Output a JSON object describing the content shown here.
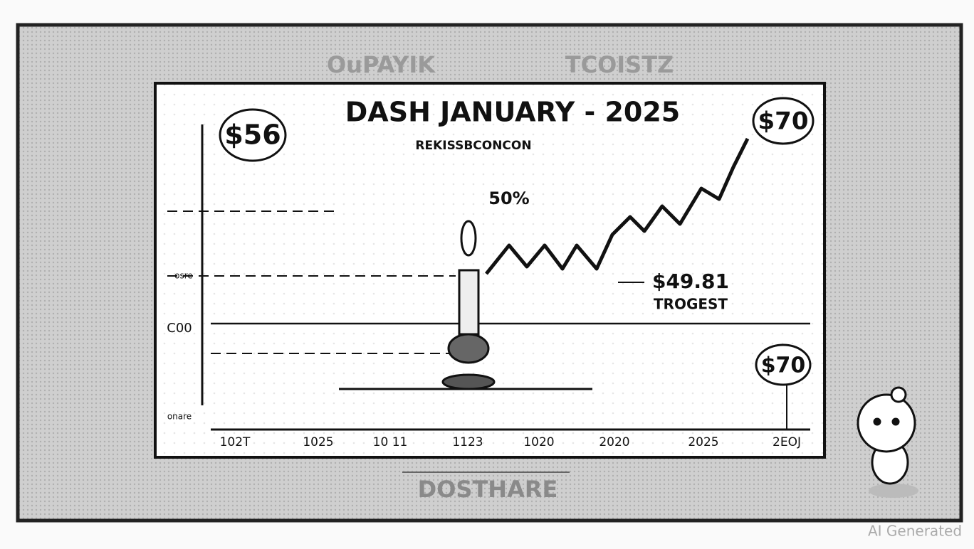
{
  "header": {
    "left": "OuPAYIK",
    "right": "TCOISTZ"
  },
  "panel": {
    "title": "DASH JANUARY - 2025",
    "subtitle": "REKISSBCONCON",
    "callouts": [
      "$56",
      "$70",
      "50%",
      "$49.81",
      "TROGEST",
      "$70"
    ],
    "left_labels": [
      "osre",
      "C00",
      "onare"
    ],
    "x_labels": [
      "102T",
      "1025",
      "10 11",
      "1123",
      "1020",
      "2020",
      "2025",
      "2EOJ"
    ]
  },
  "footer": {
    "label": "DOSTHARE"
  },
  "watermark": "AI Generated"
}
